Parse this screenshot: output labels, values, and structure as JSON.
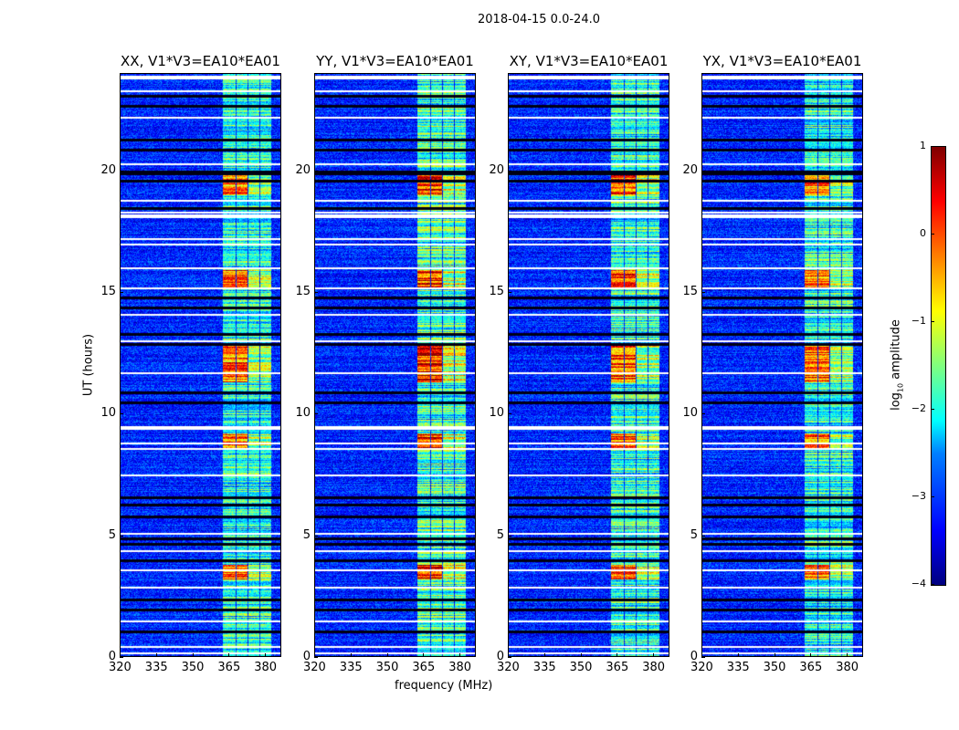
{
  "chart_data": {
    "type": "heatmap",
    "title": "2018-04-15 0.0-24.0",
    "xlabel": "frequency (MHz)",
    "ylabel": "UT (hours)",
    "xlim": [
      320,
      386.7
    ],
    "ylim": [
      0,
      24
    ],
    "xticks": [
      "320",
      "335",
      "350",
      "365",
      "380"
    ],
    "yticks": [
      "0",
      "5",
      "10",
      "15",
      "20"
    ],
    "colormap": "jet",
    "colorbar": {
      "label_prefix": "log",
      "label_sub": "10",
      "label_suffix": " amplitude",
      "range": [
        -4,
        1
      ],
      "ticks": [
        "1",
        "0",
        "−1",
        "−2",
        "−3",
        "−4"
      ]
    },
    "panels": [
      {
        "title": "XX, V1*V3=EA10*EA01",
        "band_gain": 1.0
      },
      {
        "title": "YY, V1*V3=EA10*EA01",
        "band_gain": 1.15
      },
      {
        "title": "XY, V1*V3=EA10*EA01",
        "band_gain": 1.05
      },
      {
        "title": "YX, V1*V3=EA10*EA01",
        "band_gain": 1.0
      }
    ],
    "background_level": -3.2,
    "rfi_bands_mhz": [
      [
        362.5,
        367.5
      ],
      [
        368,
        372.5
      ],
      [
        373,
        377.5
      ],
      [
        378,
        382.5
      ]
    ],
    "strong_rfi_hours": [
      [
        11.3,
        12.9
      ],
      [
        15.2,
        15.9
      ],
      [
        19.0,
        19.8
      ],
      [
        3.2,
        3.8
      ],
      [
        8.6,
        9.2
      ]
    ],
    "flagged_hours": [
      0.2,
      0.45,
      1.5,
      2.9,
      3.6,
      4.4,
      5.1,
      7.5,
      8.6,
      8.8,
      9.4,
      9.5,
      11.7,
      13.0,
      14.1,
      15.2,
      16.0,
      17.0,
      17.2,
      18.1,
      18.2,
      18.3,
      18.8,
      20.3,
      22.2,
      23.3,
      23.8,
      23.9
    ],
    "dropout_hours": [
      0.05,
      1.1,
      2.0,
      2.4,
      4.0,
      4.7,
      4.9,
      5.8,
      6.3,
      6.6,
      10.5,
      10.9,
      12.9,
      13.3,
      14.4,
      14.8,
      18.5,
      19.6,
      19.9,
      20.0,
      20.9,
      21.3,
      22.7,
      23.1
    ]
  }
}
